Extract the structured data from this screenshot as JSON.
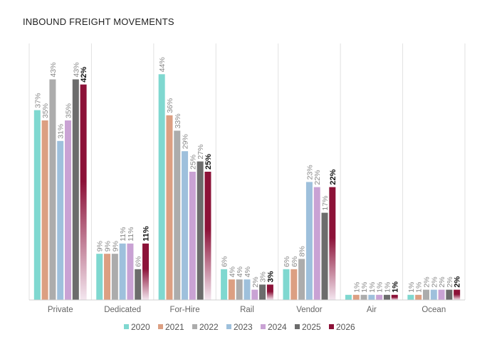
{
  "chart_data": {
    "type": "bar",
    "title": "INBOUND FREIGHT MOVEMENTS",
    "xlabel": "",
    "ylabel": "",
    "ylim": [
      0,
      50
    ],
    "grid": "vertical category separators",
    "legend_position": "bottom",
    "categories": [
      "Private",
      "Dedicated",
      "For-Hire",
      "Rail",
      "Vendor",
      "Air",
      "Ocean"
    ],
    "series": [
      {
        "name": "2020",
        "color": "#7fd8d0",
        "values": [
          37,
          9,
          44,
          6,
          6,
          1,
          1
        ],
        "labels": [
          "37%",
          "9%",
          "44%",
          "6%",
          "6%",
          "",
          "1%"
        ]
      },
      {
        "name": "2021",
        "color": "#dc9f82",
        "values": [
          35,
          9,
          36,
          4,
          6,
          1,
          1
        ],
        "labels": [
          "35%",
          "9%",
          "36%",
          "4%",
          "6%",
          "1%",
          "1%"
        ]
      },
      {
        "name": "2022",
        "color": "#acacac",
        "values": [
          43,
          9,
          33,
          4,
          8,
          1,
          2
        ],
        "labels": [
          "43%",
          "9%",
          "33%",
          "4%",
          "8%",
          "1%",
          "2%"
        ]
      },
      {
        "name": "2023",
        "color": "#9ec0dc",
        "values": [
          31,
          11,
          29,
          4,
          23,
          1,
          2
        ],
        "labels": [
          "31%",
          "11%",
          "29%",
          "4%",
          "23%",
          "1%",
          "2%"
        ]
      },
      {
        "name": "2024",
        "color": "#c9a2d4",
        "values": [
          35,
          11,
          25,
          2,
          22,
          1,
          2
        ],
        "labels": [
          "35%",
          "11%",
          "25%",
          "2%",
          "22%",
          "1%",
          "2%"
        ]
      },
      {
        "name": "2025",
        "color": "#6c6c6c",
        "values": [
          43,
          6,
          27,
          3,
          17,
          1,
          2
        ],
        "labels": [
          "43%",
          "6%",
          "27%",
          "3%",
          "17%",
          "1%",
          "2%"
        ]
      },
      {
        "name": "2026",
        "color": "#8c1238",
        "values": [
          42,
          11,
          25,
          3,
          22,
          1,
          2
        ],
        "labels": [
          "42%",
          "11%",
          "25%",
          "3%",
          "22%",
          "1%",
          "2%"
        ]
      }
    ]
  }
}
